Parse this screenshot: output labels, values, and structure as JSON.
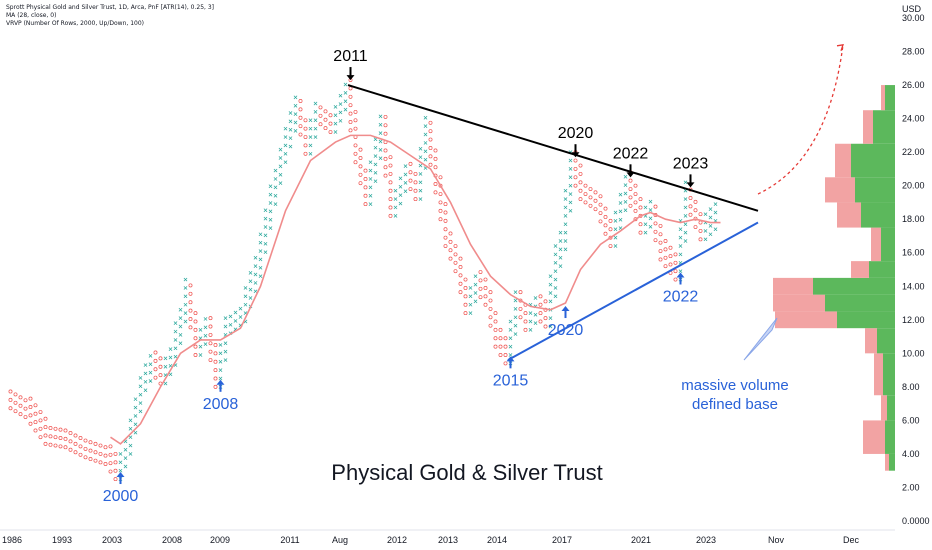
{
  "legend": {
    "line1": "Sprott Physical Gold and Silver Trust, 1D, Arca, PnF [ATR(14), 0.25, 3]",
    "line2": "MA (28, close, 0)",
    "line3": "VRVP (Number Of Rows, 2000, Up/Down, 100)"
  },
  "colors": {
    "up": "#26a69a",
    "down": "#ef5350",
    "ma": "#f08c8c",
    "resistance": "#000000",
    "support": "#2962d8",
    "vol_up": "#5cb85c",
    "vol_down": "#f2a3a3",
    "projection": "#e53935"
  },
  "chart_data": {
    "type": "pnf",
    "title": "Physical Gold & Silver Trust",
    "currency_label": "USD",
    "y_ticks": [
      "30.00",
      "28.00",
      "26.00",
      "24.00",
      "22.00",
      "20.00",
      "18.00",
      "16.00",
      "14.00",
      "12.00",
      "10.00",
      "8.00",
      "6.00",
      "4.00",
      "2.00",
      "0.0000"
    ],
    "ylim": [
      0,
      30
    ],
    "x_labels": [
      "1986",
      "1993",
      "2003",
      "2008",
      "2009",
      "2011",
      "Aug",
      "2012",
      "2013",
      "2014",
      "2017",
      "2021",
      "2023",
      "Nov",
      "Dec"
    ],
    "price_path": [
      [
        0,
        7.5
      ],
      [
        4,
        6.8
      ],
      [
        8,
        5.2
      ],
      [
        12,
        5.0
      ],
      [
        16,
        4.4
      ],
      [
        20,
        4.0
      ],
      [
        22,
        3.1
      ],
      [
        24,
        4.6
      ],
      [
        27,
        8.4
      ],
      [
        29,
        9.5
      ],
      [
        31,
        8.8
      ],
      [
        33,
        9.9
      ],
      [
        36,
        13.8
      ],
      [
        38,
        10.5
      ],
      [
        40,
        11.8
      ],
      [
        42,
        8.6
      ],
      [
        44,
        11.8
      ],
      [
        47,
        12.5
      ],
      [
        50,
        15.2
      ],
      [
        53,
        19.5
      ],
      [
        55,
        22.0
      ],
      [
        58,
        24.8
      ],
      [
        60,
        22.5
      ],
      [
        62,
        24.5
      ],
      [
        65,
        23.8
      ],
      [
        68,
        25.8
      ],
      [
        70,
        22.0
      ],
      [
        72,
        19.5
      ],
      [
        75,
        23.6
      ],
      [
        77,
        18.8
      ],
      [
        80,
        21.0
      ],
      [
        82,
        19.8
      ],
      [
        84,
        23.5
      ],
      [
        86,
        20.2
      ],
      [
        88,
        17.0
      ],
      [
        90,
        15.5
      ],
      [
        92,
        13.0
      ],
      [
        94,
        14.4
      ],
      [
        96,
        13.5
      ],
      [
        98,
        11.0
      ],
      [
        100,
        10.0
      ],
      [
        102,
        13.5
      ],
      [
        104,
        12.0
      ],
      [
        106,
        12.8
      ],
      [
        108,
        12.2
      ],
      [
        110,
        15.8
      ],
      [
        111,
        16.8
      ],
      [
        113,
        21.4
      ],
      [
        115,
        19.8
      ],
      [
        118,
        19.2
      ],
      [
        121,
        17.0
      ],
      [
        124,
        20.2
      ],
      [
        127,
        17.8
      ],
      [
        129,
        18.5
      ],
      [
        131,
        16.2
      ],
      [
        134,
        15.0
      ],
      [
        136,
        19.6
      ],
      [
        139,
        17.4
      ],
      [
        142,
        18.3
      ]
    ],
    "ma_path": [
      [
        20,
        5.0
      ],
      [
        22,
        4.6
      ],
      [
        26,
        5.8
      ],
      [
        30,
        8.0
      ],
      [
        34,
        10.0
      ],
      [
        38,
        10.8
      ],
      [
        42,
        10.8
      ],
      [
        46,
        11.5
      ],
      [
        50,
        14.0
      ],
      [
        55,
        18.5
      ],
      [
        60,
        21.5
      ],
      [
        65,
        22.6
      ],
      [
        68,
        23.0
      ],
      [
        72,
        23.0
      ],
      [
        76,
        22.6
      ],
      [
        80,
        21.8
      ],
      [
        84,
        21.0
      ],
      [
        88,
        19.0
      ],
      [
        92,
        16.5
      ],
      [
        96,
        14.6
      ],
      [
        100,
        13.5
      ],
      [
        104,
        12.8
      ],
      [
        108,
        12.6
      ],
      [
        111,
        13.0
      ],
      [
        114,
        15.0
      ],
      [
        118,
        16.5
      ],
      [
        122,
        17.3
      ],
      [
        126,
        18.2
      ],
      [
        128,
        18.4
      ],
      [
        131,
        18.0
      ],
      [
        134,
        17.8
      ],
      [
        137,
        18.0
      ],
      [
        140,
        17.8
      ],
      [
        142,
        17.8
      ]
    ],
    "resistance_line": [
      [
        68,
        26.0
      ],
      [
        150,
        18.5
      ]
    ],
    "support_line": [
      [
        100,
        9.6
      ],
      [
        150,
        17.8
      ]
    ],
    "annotations": [
      {
        "label": "2011",
        "kind": "top",
        "x": 68,
        "y": 26.0
      },
      {
        "label": "2020",
        "kind": "top",
        "x": 113,
        "y": 21.4
      },
      {
        "label": "2022",
        "kind": "top",
        "x": 124,
        "y": 20.2
      },
      {
        "label": "2023",
        "kind": "top",
        "x": 136,
        "y": 19.6
      },
      {
        "label": "2000",
        "kind": "bottom",
        "x": 22,
        "y": 3.1
      },
      {
        "label": "2008",
        "kind": "bottom",
        "x": 42,
        "y": 8.6
      },
      {
        "label": "2015",
        "kind": "bottom",
        "x": 100,
        "y": 10.0
      },
      {
        "label": "2020",
        "kind": "bottom",
        "x": 111,
        "y": 13.0
      },
      {
        "label": "2022",
        "kind": "bottom",
        "x": 134,
        "y": 15.0
      }
    ],
    "volume_note": [
      "massive volume",
      "defined base"
    ],
    "volume_profile": {
      "bands": [
        {
          "from": 3.0,
          "to": 4.0,
          "up": 6,
          "down": 4
        },
        {
          "from": 4.0,
          "to": 6.0,
          "up": 10,
          "down": 22
        },
        {
          "from": 6.0,
          "to": 7.5,
          "up": 8,
          "down": 6
        },
        {
          "from": 7.5,
          "to": 10.0,
          "up": 12,
          "down": 9
        },
        {
          "from": 10.0,
          "to": 11.5,
          "up": 18,
          "down": 12
        },
        {
          "from": 11.5,
          "to": 12.5,
          "up": 58,
          "down": 62
        },
        {
          "from": 12.5,
          "to": 13.5,
          "up": 70,
          "down": 52
        },
        {
          "from": 13.5,
          "to": 14.5,
          "up": 82,
          "down": 40
        },
        {
          "from": 14.5,
          "to": 15.5,
          "up": 26,
          "down": 18
        },
        {
          "from": 15.5,
          "to": 17.5,
          "up": 14,
          "down": 10
        },
        {
          "from": 17.5,
          "to": 19.0,
          "up": 34,
          "down": 24
        },
        {
          "from": 19.0,
          "to": 20.5,
          "up": 40,
          "down": 30
        },
        {
          "from": 20.5,
          "to": 22.5,
          "up": 44,
          "down": 16
        },
        {
          "from": 22.5,
          "to": 24.5,
          "up": 22,
          "down": 10
        },
        {
          "from": 24.5,
          "to": 26.0,
          "up": 10,
          "down": 4
        }
      ]
    },
    "projection": [
      [
        150,
        19.5
      ],
      [
        158,
        21.5
      ],
      [
        164,
        24.5
      ],
      [
        167,
        28.4
      ]
    ]
  }
}
